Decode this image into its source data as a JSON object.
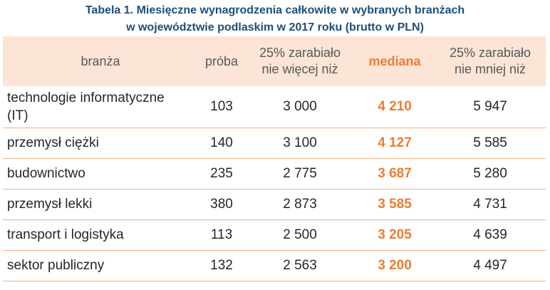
{
  "caption": {
    "line1": "Tabela 1. Miesięczne wynagrodzenia całkowite w wybranych branżach",
    "line2": "w województwie podlaskim w 2017 roku (brutto w PLN)"
  },
  "headers": {
    "branza": "branża",
    "proba": "próba",
    "q25_line1": "25% zarabiało",
    "q25_line2": "nie więcej niż",
    "mediana": "mediana",
    "q75_line1": "25% zarabiało",
    "q75_line2": "nie mniej niż"
  },
  "rows": [
    {
      "name_line1": "technologie informatyczne",
      "name_line2": "(IT)",
      "proba": "103",
      "q25": "3 000",
      "mediana": "4 210",
      "q75": "5 947"
    },
    {
      "name_line1": "przemysł ciężki",
      "name_line2": "",
      "proba": "140",
      "q25": "3 100",
      "mediana": "4 127",
      "q75": "5 585"
    },
    {
      "name_line1": "budownictwo",
      "name_line2": "",
      "proba": "235",
      "q25": "2 775",
      "mediana": "3 687",
      "q75": "5 280"
    },
    {
      "name_line1": "przemysł lekki",
      "name_line2": "",
      "proba": "380",
      "q25": "2 873",
      "mediana": "3 585",
      "q75": "4 731"
    },
    {
      "name_line1": "transport i logistyka",
      "name_line2": "",
      "proba": "113",
      "q25": "2 500",
      "mediana": "3 205",
      "q75": "4 639"
    },
    {
      "name_line1": "sektor publiczny",
      "name_line2": "",
      "proba": "132",
      "q25": "2 563",
      "mediana": "3 200",
      "q75": "4 497"
    }
  ]
}
